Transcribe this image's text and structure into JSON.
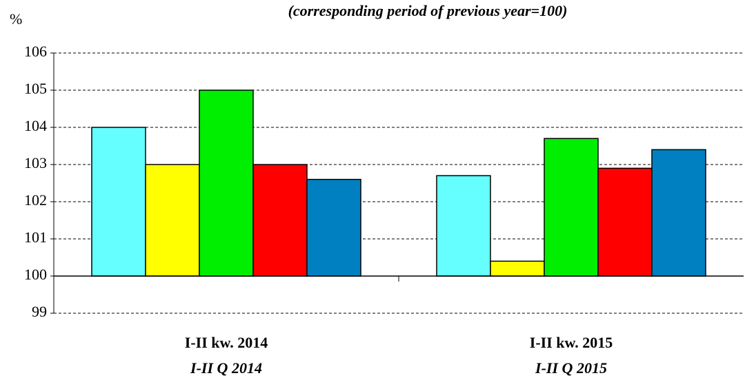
{
  "chart_data": {
    "type": "bar",
    "subtitle": "(corresponding period of previous year=100)",
    "ylabel": "%",
    "categories": [
      "I-II kw. 2014",
      "I-II kw. 2015"
    ],
    "categories_en": [
      "I-II Q 2014",
      "I-II Q 2015"
    ],
    "series": [
      {
        "color": "#66ffff",
        "values": [
          104.0,
          102.7
        ]
      },
      {
        "color": "#ffff00",
        "values": [
          103.0,
          100.4
        ]
      },
      {
        "color": "#00ee00",
        "values": [
          105.0,
          103.7
        ]
      },
      {
        "color": "#ff0000",
        "values": [
          103.0,
          102.9
        ]
      },
      {
        "color": "#0080c0",
        "values": [
          102.6,
          103.4
        ]
      }
    ],
    "bar_base": 100,
    "ylim": [
      99,
      106
    ],
    "yticks": [
      99,
      100,
      101,
      102,
      103,
      104,
      105,
      106
    ],
    "grid": true
  }
}
